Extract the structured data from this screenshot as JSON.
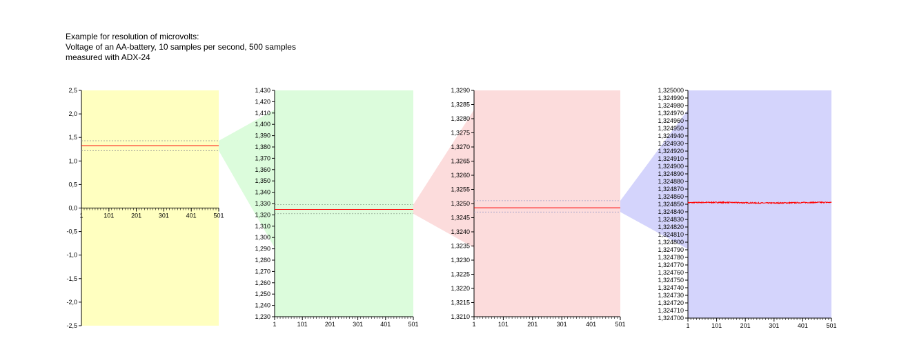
{
  "title_lines": [
    "Example for resolution of microvolts:",
    "Voltage of an AA-battery, 10 samples per second, 500 samples",
    "measured with ADX-24"
  ],
  "colors": {
    "panel_1": "#ffffc0",
    "panel_2": "#dcfcdc",
    "panel_3": "#fcdcdc",
    "panel_4": "#d4d4fc",
    "series_line": "#ff0000"
  },
  "chart_data": [
    {
      "type": "line",
      "x_ticks": [
        "1",
        "101",
        "201",
        "301",
        "401",
        "501"
      ],
      "y_ticks": [
        "2,5",
        "2,0",
        "1,5",
        "1,0",
        "0,5",
        "0,0",
        "-0,5",
        "-1,0",
        "-1,5",
        "-2,0",
        "-2,5"
      ],
      "ylim": [
        -2.5,
        2.5
      ],
      "x_range": [
        1,
        501
      ],
      "series_mean": 1.3248,
      "band": [
        1.22,
        1.43
      ],
      "x_axis_at_y": 0
    },
    {
      "type": "line",
      "x_ticks": [
        "1",
        "101",
        "201",
        "301",
        "401",
        "501"
      ],
      "y_ticks": [
        "1,430",
        "1,420",
        "1,410",
        "1,400",
        "1,390",
        "1,380",
        "1,370",
        "1,360",
        "1,350",
        "1,340",
        "1,330",
        "1,320",
        "1,310",
        "1,300",
        "1,290",
        "1,280",
        "1,270",
        "1,260",
        "1,250",
        "1,240",
        "1,230"
      ],
      "ylim": [
        1.23,
        1.43
      ],
      "x_range": [
        1,
        501
      ],
      "series_mean": 1.3248,
      "band": [
        1.321,
        1.329
      ]
    },
    {
      "type": "line",
      "x_ticks": [
        "1",
        "101",
        "201",
        "301",
        "401",
        "501"
      ],
      "y_ticks": [
        "1,3290",
        "1,3285",
        "1,3280",
        "1,3275",
        "1,3270",
        "1,3265",
        "1,3260",
        "1,3255",
        "1,3250",
        "1,3245",
        "1,3240",
        "1,3235",
        "1,3230",
        "1,3225",
        "1,3220",
        "1,3215",
        "1,3210"
      ],
      "ylim": [
        1.321,
        1.329
      ],
      "x_range": [
        1,
        501
      ],
      "series_mean": 1.32485,
      "band": [
        1.3247,
        1.3251
      ]
    },
    {
      "type": "line",
      "x_ticks": [
        "1",
        "101",
        "201",
        "301",
        "401",
        "501"
      ],
      "y_ticks": [
        "1,325000",
        "1,324990",
        "1,324980",
        "1,324970",
        "1,324960",
        "1,324950",
        "1,324940",
        "1,324930",
        "1,324920",
        "1,324910",
        "1,324900",
        "1,324890",
        "1,324880",
        "1,324870",
        "1,324860",
        "1,324850",
        "1,324840",
        "1,324830",
        "1,324820",
        "1,324810",
        "1,324800",
        "1,324790",
        "1,324780",
        "1,324770",
        "1,324760",
        "1,324750",
        "1,324740",
        "1,324730",
        "1,324720",
        "1,324710",
        "1,324700"
      ],
      "ylim": [
        1.3247,
        1.325
      ],
      "x_range": [
        1,
        501
      ],
      "series_mean": 1.324852,
      "noise": 1.2e-06
    }
  ]
}
